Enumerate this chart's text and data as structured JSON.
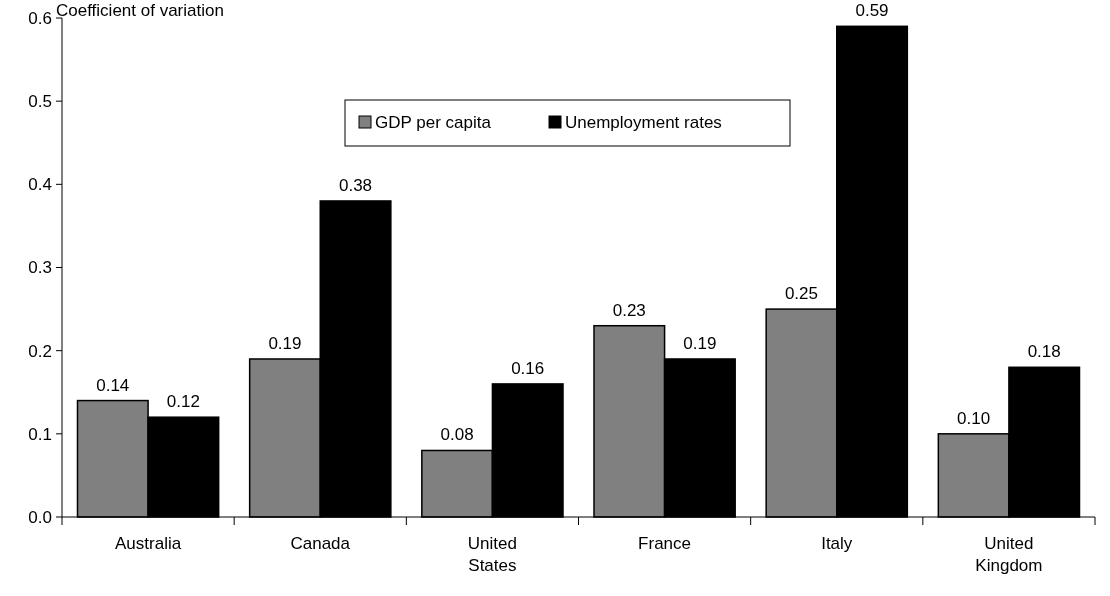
{
  "chart_data": {
    "type": "bar",
    "ylabel": "Coefficient of variation",
    "categories": [
      "Australia",
      "Canada",
      "United States",
      "France",
      "Italy",
      "United Kingdom"
    ],
    "series": [
      {
        "name": "GDP per capita",
        "color": "#808080",
        "values": [
          0.14,
          0.19,
          0.08,
          0.23,
          0.25,
          0.1
        ],
        "value_labels": [
          "0.14",
          "0.19",
          "0.08",
          "0.23",
          "0.25",
          "0.10"
        ]
      },
      {
        "name": "Unemployment rates",
        "color": "#000000",
        "values": [
          0.12,
          0.38,
          0.16,
          0.19,
          0.59,
          0.18
        ],
        "value_labels": [
          "0.12",
          "0.38",
          "0.16",
          "0.19",
          "0.59",
          "0.18"
        ]
      }
    ],
    "ylim": [
      0,
      0.6
    ],
    "yticks": [
      {
        "value": 0,
        "label": "0.0"
      },
      {
        "value": 0.1,
        "label": "0.1"
      },
      {
        "value": 0.2,
        "label": "0.2"
      },
      {
        "value": 0.3,
        "label": "0.3"
      },
      {
        "value": 0.4,
        "label": "0.4"
      },
      {
        "value": 0.5,
        "label": "0.5"
      },
      {
        "value": 0.6,
        "label": "0.6"
      }
    ],
    "grid": false,
    "legend": "top"
  }
}
